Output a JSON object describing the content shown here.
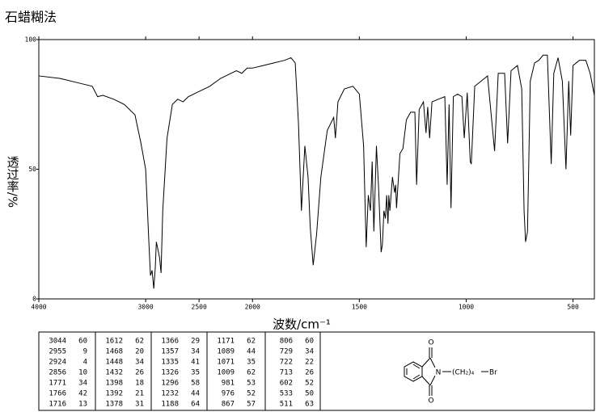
{
  "chart_data": {
    "type": "line",
    "title": "石蜡糊法",
    "x_label": "波数/cm⁻¹",
    "y_label": "透过率/%",
    "xlim": [
      4000,
      400
    ],
    "x_scale_break": 2000,
    "x_scale_factor_below_break": 2,
    "xticks": [
      4000,
      3000,
      2500,
      2000,
      1500,
      1000,
      500
    ],
    "ylim": [
      0,
      100
    ],
    "yticks": [
      0,
      50,
      100
    ],
    "color": "#000000",
    "x": [
      4000,
      3800,
      3600,
      3500,
      3450,
      3400,
      3300,
      3200,
      3100,
      3044,
      3000,
      2970,
      2955,
      2940,
      2924,
      2910,
      2900,
      2870,
      2856,
      2840,
      2800,
      2750,
      2700,
      2650,
      2600,
      2500,
      2400,
      2300,
      2200,
      2150,
      2100,
      2050,
      2000,
      1950,
      1900,
      1850,
      1820,
      1800,
      1785,
      1771,
      1766,
      1755,
      1740,
      1730,
      1716,
      1700,
      1680,
      1650,
      1620,
      1612,
      1600,
      1570,
      1530,
      1500,
      1480,
      1468,
      1458,
      1448,
      1440,
      1432,
      1420,
      1410,
      1398,
      1392,
      1385,
      1378,
      1372,
      1366,
      1362,
      1357,
      1345,
      1335,
      1330,
      1326,
      1310,
      1296,
      1280,
      1260,
      1240,
      1232,
      1220,
      1200,
      1188,
      1180,
      1171,
      1160,
      1130,
      1100,
      1089,
      1080,
      1071,
      1060,
      1040,
      1020,
      1009,
      995,
      981,
      976,
      960,
      930,
      900,
      867,
      850,
      820,
      806,
      790,
      760,
      740,
      729,
      722,
      713,
      700,
      680,
      660,
      640,
      620,
      602,
      590,
      570,
      550,
      533,
      520,
      511,
      500,
      470,
      440,
      420,
      400
    ],
    "values": [
      86,
      85,
      83,
      82,
      78,
      78.5,
      77,
      75,
      71,
      60,
      50,
      22,
      9,
      11,
      4,
      12,
      22,
      16,
      10,
      34,
      62,
      75,
      77,
      76,
      78,
      80,
      82,
      85,
      87,
      88,
      87,
      89,
      89,
      90,
      91,
      92,
      93,
      91,
      68,
      34,
      42,
      59,
      47,
      28,
      13,
      25,
      47,
      65,
      70,
      62,
      76,
      81,
      82,
      79,
      59,
      20,
      40,
      34,
      53,
      26,
      59,
      43,
      18,
      21,
      34,
      31,
      40,
      29,
      40,
      34,
      47,
      41,
      44,
      35,
      56,
      58,
      69,
      72,
      72,
      44,
      73,
      76,
      64,
      74,
      62,
      76,
      77,
      78,
      44,
      75,
      35,
      78,
      79,
      78,
      62,
      79.5,
      53,
      52,
      82,
      84,
      86,
      57,
      87,
      87,
      60,
      88,
      90,
      81,
      34,
      22,
      26,
      84,
      91,
      92,
      94,
      94,
      52,
      87,
      93,
      84,
      50,
      84,
      63,
      90,
      92,
      92,
      87,
      78.5
    ]
  },
  "peak_table": {
    "rows": [
      [
        3044,
        60,
        1612,
        62,
        1366,
        29,
        1171,
        62,
        806,
        60
      ],
      [
        2955,
        9,
        1468,
        20,
        1357,
        34,
        1089,
        44,
        729,
        34
      ],
      [
        2924,
        4,
        1448,
        34,
        1335,
        41,
        1071,
        35,
        722,
        22
      ],
      [
        2856,
        10,
        1432,
        26,
        1326,
        35,
        1009,
        62,
        713,
        26
      ],
      [
        1771,
        34,
        1398,
        18,
        1296,
        58,
        981,
        53,
        602,
        52
      ],
      [
        1766,
        42,
        1392,
        21,
        1232,
        44,
        976,
        52,
        533,
        50
      ],
      [
        1716,
        13,
        1378,
        31,
        1188,
        64,
        867,
        57,
        511,
        63
      ]
    ]
  },
  "structure": {
    "top_atom": "O",
    "bottom_atom": "O",
    "n_atom": "N",
    "chain": "(CH₂)₄",
    "end_atom": "Br"
  }
}
